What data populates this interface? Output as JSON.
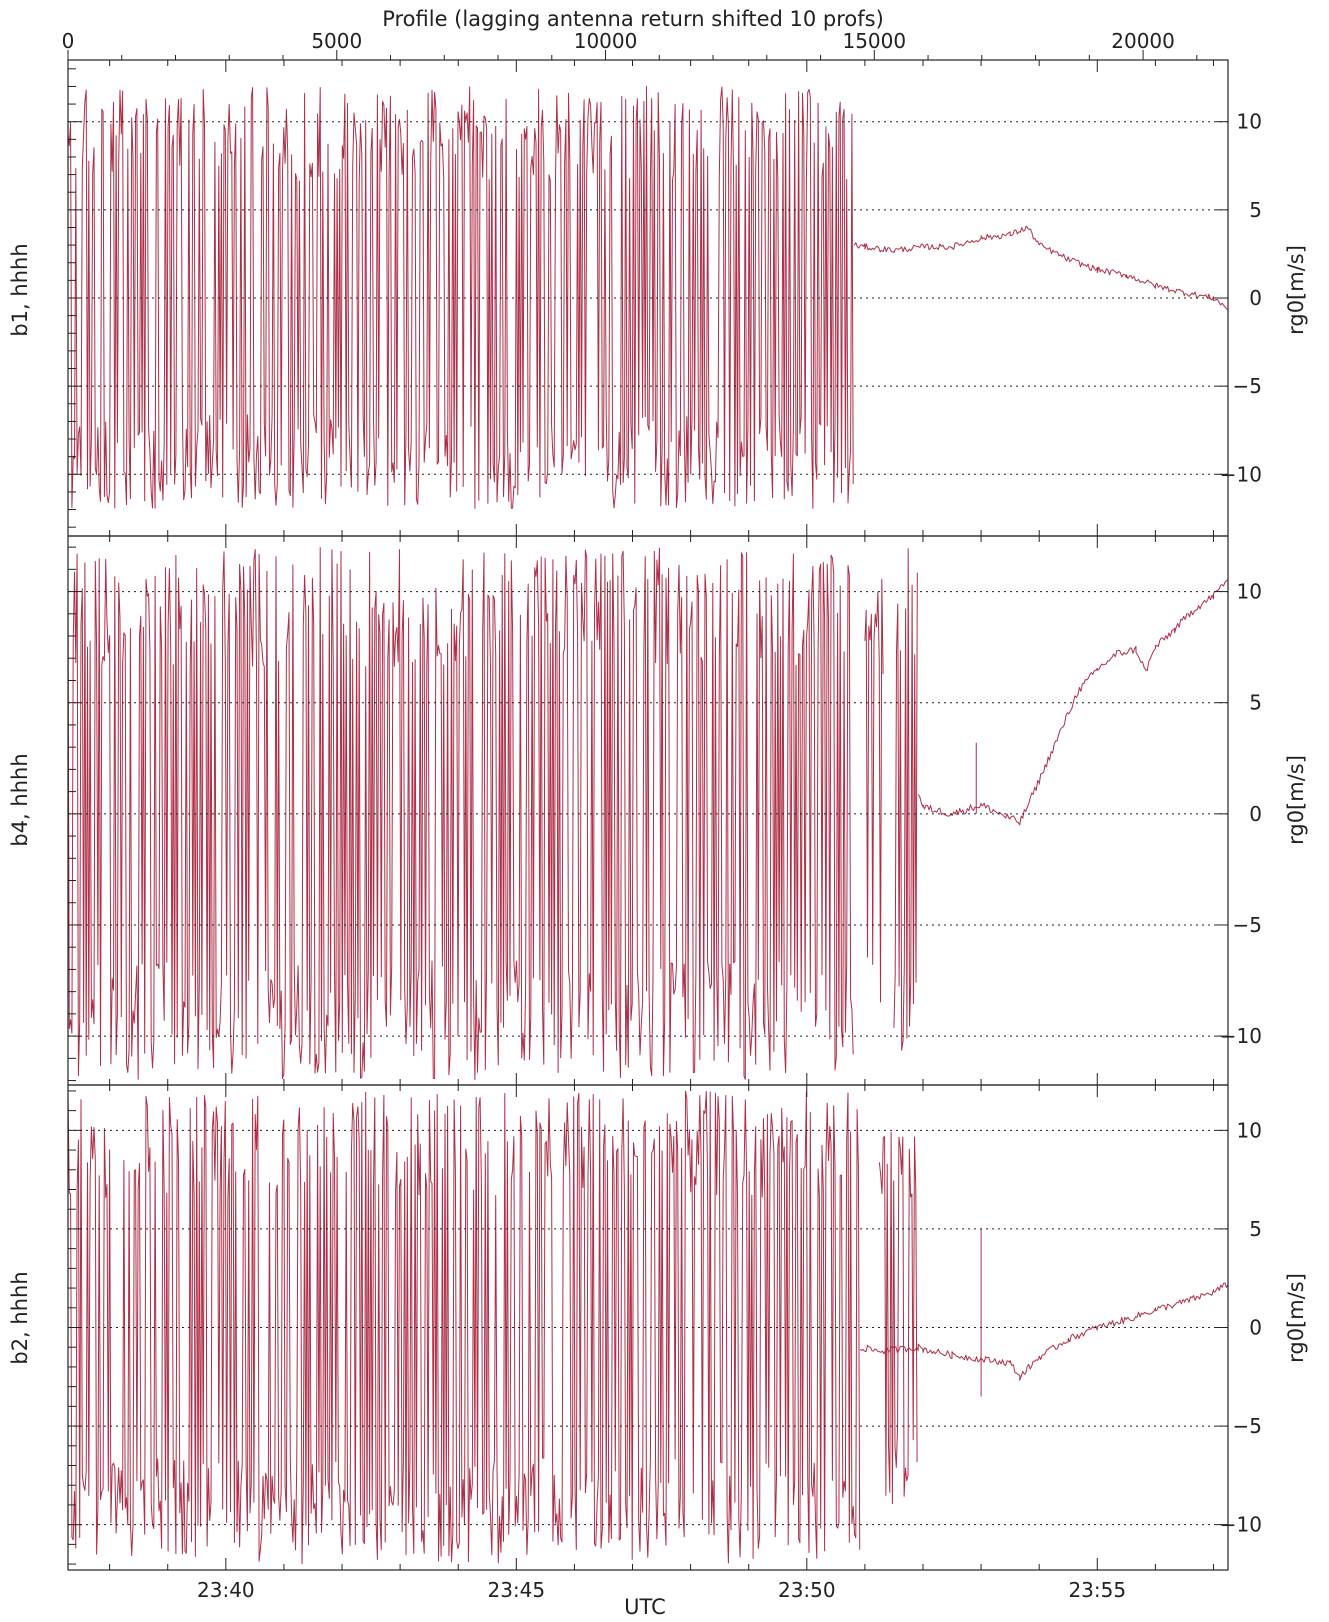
{
  "chart_data": {
    "type": "line",
    "colors": {
      "trace": "#ad2f48",
      "axis": "#222222"
    },
    "top_axis": {
      "label": "Profile (lagging antenna return shifted 10 profs)",
      "range": [
        0,
        21580
      ],
      "ticks": [
        {
          "value": 0,
          "label": "0"
        },
        {
          "value": 5000,
          "label": "5000"
        },
        {
          "value": 10000,
          "label": "10000"
        },
        {
          "value": 15000,
          "label": "15000"
        },
        {
          "value": 20000,
          "label": "20000"
        }
      ]
    },
    "bottom_axis": {
      "label": "UTC",
      "range": [
        "23:37:17",
        "23:57:15"
      ],
      "ticks": [
        {
          "value": "23:40:00",
          "label": "23:40"
        },
        {
          "value": "23:45:00",
          "label": "23:45"
        },
        {
          "value": "23:50:00",
          "label": "23:50"
        },
        {
          "value": "23:55:00",
          "label": "23:55"
        }
      ]
    },
    "y_ticks": [
      {
        "value": 10,
        "label": "10"
      },
      {
        "value": 5,
        "label": "5"
      },
      {
        "value": 0,
        "label": "0"
      },
      {
        "value": -5,
        "label": "−5"
      },
      {
        "value": -10,
        "label": "−10"
      }
    ],
    "grid": "dotted horizontal at y ticks",
    "panels": [
      {
        "name": "b1, hhhh",
        "ylabel": "rg0[m/s]",
        "ylim": [
          -13.5,
          13.5
        ],
        "noise_segments": [
          {
            "start": "23:37:17",
            "end": "23:50:49",
            "range": [
              -12,
              12
            ]
          }
        ],
        "points": [
          [
            "23:50:49",
            3.0
          ],
          [
            "23:51:00",
            2.9
          ],
          [
            "23:51:30",
            2.7
          ],
          [
            "23:52:00",
            2.9
          ],
          [
            "23:52:30",
            2.9
          ],
          [
            "23:53:00",
            3.4
          ],
          [
            "23:53:30",
            3.6
          ],
          [
            "23:53:48",
            4.0
          ],
          [
            "23:54:00",
            3.0
          ],
          [
            "23:54:30",
            2.2
          ],
          [
            "23:55:00",
            1.6
          ],
          [
            "23:55:30",
            1.3
          ],
          [
            "23:56:00",
            0.7
          ],
          [
            "23:56:30",
            0.3
          ],
          [
            "23:57:00",
            0.0
          ],
          [
            "23:57:15",
            -0.6
          ]
        ]
      },
      {
        "name": "b4, hhhh",
        "ylabel": "rg0[m/s]",
        "ylim": [
          -12.2,
          12.5
        ],
        "noise_segments": [
          {
            "start": "23:37:17",
            "end": "23:50:49",
            "range": [
              -12,
              12
            ]
          },
          {
            "start": "23:51:00",
            "end": "23:51:20",
            "range": [
              -11,
              11
            ]
          },
          {
            "start": "23:51:30",
            "end": "23:51:55",
            "range": [
              -12,
              12
            ]
          }
        ],
        "spikes": [
          [
            "23:52:55",
            3.2
          ]
        ],
        "points": [
          [
            "23:51:55",
            1.0
          ],
          [
            "23:52:00",
            0.3
          ],
          [
            "23:52:30",
            0.0
          ],
          [
            "23:53:00",
            0.4
          ],
          [
            "23:53:30",
            -0.2
          ],
          [
            "23:53:40",
            -0.4
          ],
          [
            "23:54:00",
            1.5
          ],
          [
            "23:54:20",
            3.5
          ],
          [
            "23:54:40",
            5.5
          ],
          [
            "23:55:00",
            6.5
          ],
          [
            "23:55:20",
            7.2
          ],
          [
            "23:55:40",
            7.4
          ],
          [
            "23:55:50",
            6.4
          ],
          [
            "23:56:00",
            7.5
          ],
          [
            "23:56:20",
            8.3
          ],
          [
            "23:56:40",
            9.2
          ],
          [
            "23:57:00",
            9.8
          ],
          [
            "23:57:15",
            10.6
          ]
        ]
      },
      {
        "name": "b2, hhhh",
        "ylabel": "rg0[m/s]",
        "ylim": [
          -12.3,
          12.3
        ],
        "noise_segments": [
          {
            "start": "23:37:17",
            "end": "23:50:55",
            "range": [
              -12,
              12
            ]
          },
          {
            "start": "23:51:15",
            "end": "23:51:55",
            "range": [
              -9,
              10
            ]
          }
        ],
        "spikes": [
          [
            "23:53:00",
            5.0
          ],
          [
            "23:53:00",
            -3.5
          ]
        ],
        "points": [
          [
            "23:50:55",
            -1.0
          ],
          [
            "23:51:15",
            -1.2
          ],
          [
            "23:51:55",
            -1.0
          ],
          [
            "23:52:00",
            -1.1
          ],
          [
            "23:52:30",
            -1.4
          ],
          [
            "23:53:00",
            -1.6
          ],
          [
            "23:53:30",
            -1.8
          ],
          [
            "23:53:40",
            -2.5
          ],
          [
            "23:54:00",
            -1.5
          ],
          [
            "23:54:30",
            -0.6
          ],
          [
            "23:55:00",
            0.0
          ],
          [
            "23:55:30",
            0.4
          ],
          [
            "23:56:00",
            0.9
          ],
          [
            "23:56:30",
            1.3
          ],
          [
            "23:57:00",
            1.8
          ],
          [
            "23:57:15",
            2.2
          ]
        ]
      }
    ]
  }
}
